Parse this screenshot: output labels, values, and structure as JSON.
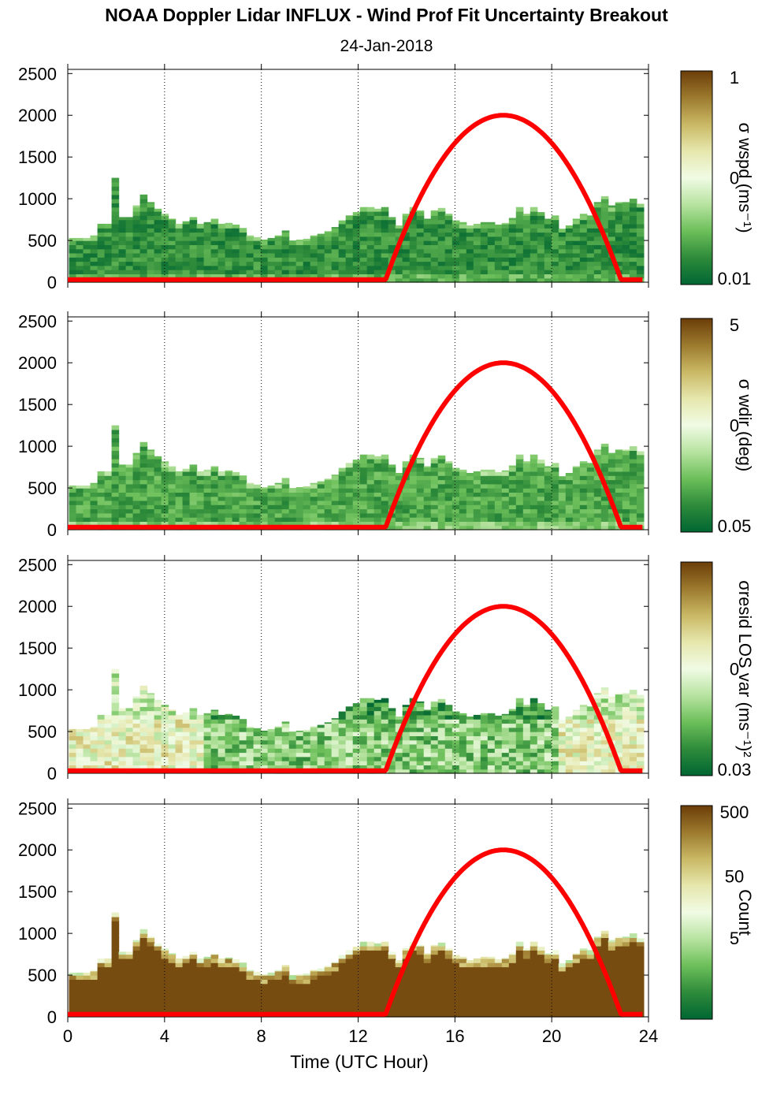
{
  "figure": {
    "title": "NOAA Doppler Lidar INFLUX - Wind Prof Fit Uncertainty Breakout",
    "subtitle": "24-Jan-2018",
    "xlabel": "Time (UTC Hour)"
  },
  "colors": {
    "sun_curve": "#ff0000",
    "colormap": [
      "#006633",
      "#2e8b3a",
      "#6cbf5a",
      "#b7e3a0",
      "#f0fbe4",
      "#e6e7ad",
      "#c9b864",
      "#9c7a2e",
      "#6b3d08"
    ],
    "nodata": "#ffffff"
  },
  "chart_data": [
    {
      "type": "heatmap",
      "name": "panel-wspd",
      "colorbar_label": "σ wspd (ms⁻¹)",
      "colorbar_ticks": [
        "1",
        "0",
        "0.01"
      ],
      "color_scale": "log",
      "value_range": [
        0.01,
        1
      ],
      "x_ticks": [
        0,
        4,
        8,
        12,
        16,
        20,
        24
      ],
      "xlim": [
        0,
        24
      ],
      "y_ticks": [
        0,
        500,
        1000,
        1500,
        2000,
        2500
      ],
      "ylim": [
        0,
        2550
      ],
      "profile_top_m": [
        530,
        530,
        530,
        560,
        700,
        700,
        1250,
        780,
        780,
        920,
        1050,
        960,
        880,
        820,
        760,
        700,
        730,
        780,
        700,
        720,
        760,
        700,
        710,
        690,
        650,
        560,
        540,
        510,
        530,
        560,
        620,
        500,
        510,
        520,
        560,
        580,
        610,
        660,
        740,
        800,
        840,
        900,
        900,
        880,
        900,
        780,
        680,
        820,
        900,
        860,
        760,
        860,
        890,
        820,
        740,
        720,
        680,
        700,
        720,
        720,
        690,
        710,
        770,
        900,
        820,
        900,
        840,
        760,
        800,
        640,
        680,
        760,
        820,
        800,
        960,
        1030,
        920,
        960,
        960,
        1000,
        940
      ],
      "typical_value": 0.012,
      "sun_curve": {
        "peak_hour": 18.0,
        "peak_height_m": 2000,
        "start_hour": 13.1,
        "end_hour": 22.9,
        "base_m": 30
      }
    },
    {
      "type": "heatmap",
      "name": "panel-wdir",
      "colorbar_label": "σ wdir (deg)",
      "colorbar_ticks": [
        "5",
        "0",
        "0.05"
      ],
      "color_scale": "log",
      "value_range": [
        0.05,
        5
      ],
      "x_ticks": [
        0,
        4,
        8,
        12,
        16,
        20,
        24
      ],
      "xlim": [
        0,
        24
      ],
      "y_ticks": [
        0,
        500,
        1000,
        1500,
        2000,
        2500
      ],
      "ylim": [
        0,
        2550
      ],
      "profile_top_m": [
        530,
        530,
        530,
        560,
        700,
        700,
        1250,
        780,
        780,
        920,
        1050,
        960,
        880,
        820,
        760,
        700,
        730,
        780,
        700,
        720,
        760,
        700,
        710,
        690,
        650,
        560,
        540,
        510,
        530,
        560,
        620,
        500,
        510,
        520,
        560,
        580,
        610,
        660,
        740,
        800,
        840,
        900,
        900,
        880,
        900,
        780,
        680,
        820,
        900,
        860,
        760,
        860,
        890,
        820,
        740,
        720,
        680,
        700,
        720,
        720,
        690,
        710,
        770,
        900,
        820,
        900,
        840,
        760,
        800,
        640,
        680,
        760,
        820,
        800,
        960,
        1030,
        920,
        960,
        960,
        1000,
        940
      ],
      "typical_value": 0.08,
      "sun_curve": {
        "peak_hour": 18.0,
        "peak_height_m": 2000,
        "start_hour": 13.1,
        "end_hour": 22.9,
        "base_m": 30
      }
    },
    {
      "type": "heatmap",
      "name": "panel-resid",
      "colorbar_label": "σresid LOS var (ms⁻¹)²",
      "colorbar_ticks": [
        "0",
        "0.03"
      ],
      "color_scale": "log",
      "value_range": [
        0.03,
        3
      ],
      "x_ticks": [
        0,
        4,
        8,
        12,
        16,
        20,
        24
      ],
      "xlim": [
        0,
        24
      ],
      "y_ticks": [
        0,
        500,
        1000,
        1500,
        2000,
        2500
      ],
      "ylim": [
        0,
        2550
      ],
      "profile_top_m": [
        530,
        530,
        530,
        560,
        700,
        700,
        1250,
        780,
        780,
        920,
        1050,
        960,
        880,
        820,
        760,
        700,
        730,
        780,
        700,
        720,
        760,
        700,
        710,
        690,
        650,
        560,
        540,
        510,
        530,
        560,
        620,
        500,
        510,
        520,
        560,
        580,
        610,
        660,
        740,
        800,
        840,
        900,
        900,
        880,
        900,
        780,
        680,
        820,
        900,
        860,
        760,
        860,
        890,
        820,
        740,
        720,
        680,
        700,
        720,
        720,
        690,
        710,
        770,
        900,
        820,
        900,
        840,
        760,
        800,
        640,
        680,
        760,
        820,
        800,
        960,
        1030,
        920,
        960,
        960,
        1000,
        940
      ],
      "typical_value": 0.3,
      "sun_curve": {
        "peak_hour": 18.0,
        "peak_height_m": 2000,
        "start_hour": 13.1,
        "end_hour": 22.9,
        "base_m": 30
      }
    },
    {
      "type": "heatmap",
      "name": "panel-count",
      "colorbar_label": "Count",
      "colorbar_ticks": [
        "500",
        "50",
        "5"
      ],
      "color_scale": "log",
      "value_range": [
        1,
        800
      ],
      "x_ticks": [
        0,
        4,
        8,
        12,
        16,
        20,
        24
      ],
      "xlim": [
        0,
        24
      ],
      "y_ticks": [
        0,
        500,
        1000,
        1500,
        2000,
        2500
      ],
      "ylim": [
        0,
        2550
      ],
      "profile_top_m": [
        530,
        530,
        530,
        560,
        700,
        700,
        1250,
        780,
        780,
        920,
        1050,
        960,
        880,
        820,
        760,
        700,
        730,
        780,
        700,
        720,
        760,
        700,
        710,
        690,
        650,
        560,
        540,
        510,
        530,
        560,
        620,
        500,
        510,
        520,
        560,
        580,
        610,
        660,
        740,
        800,
        840,
        900,
        900,
        880,
        900,
        780,
        680,
        820,
        900,
        860,
        760,
        860,
        890,
        820,
        740,
        720,
        680,
        700,
        720,
        720,
        690,
        710,
        770,
        900,
        820,
        900,
        840,
        760,
        800,
        640,
        680,
        760,
        820,
        800,
        960,
        1030,
        920,
        960,
        960,
        1000,
        940
      ],
      "typical_value": 600,
      "sun_curve": {
        "peak_hour": 18.0,
        "peak_height_m": 2000,
        "start_hour": 13.1,
        "end_hour": 22.9,
        "base_m": 30
      }
    }
  ]
}
